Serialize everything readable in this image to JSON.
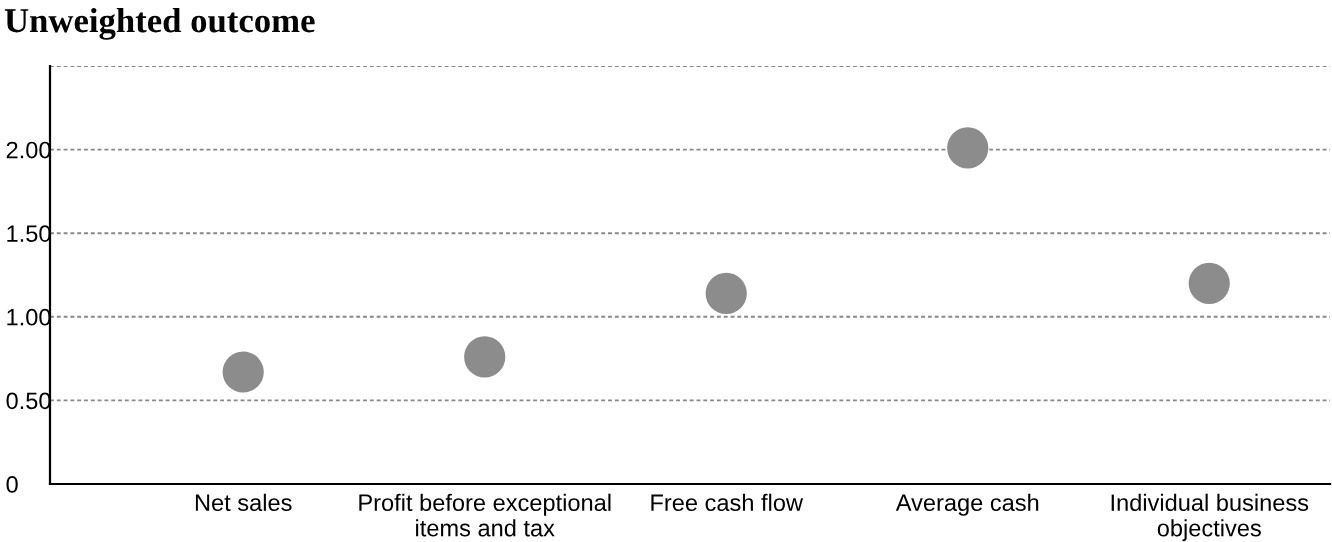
{
  "chart_data": {
    "type": "scatter",
    "title": "Unweighted outcome",
    "categories": [
      "Net sales",
      "Profit before exceptional\nitems and tax",
      "Free cash flow",
      "Average cash",
      "Individual business\nobjectives"
    ],
    "values": [
      0.67,
      0.76,
      1.14,
      2.01,
      1.2
    ],
    "color": "#8c8c8c",
    "marker": "circle",
    "ylim": [
      0,
      2.5
    ],
    "yticks": [
      0,
      {
        "value": 0.5,
        "label": "0.50"
      },
      {
        "value": 1.0,
        "label": "1.00"
      },
      {
        "value": 1.5,
        "label": "1.50"
      },
      {
        "value": 2.0,
        "label": "2.00"
      },
      {
        "value": 2.5,
        "label": null
      }
    ],
    "grid": "y"
  }
}
